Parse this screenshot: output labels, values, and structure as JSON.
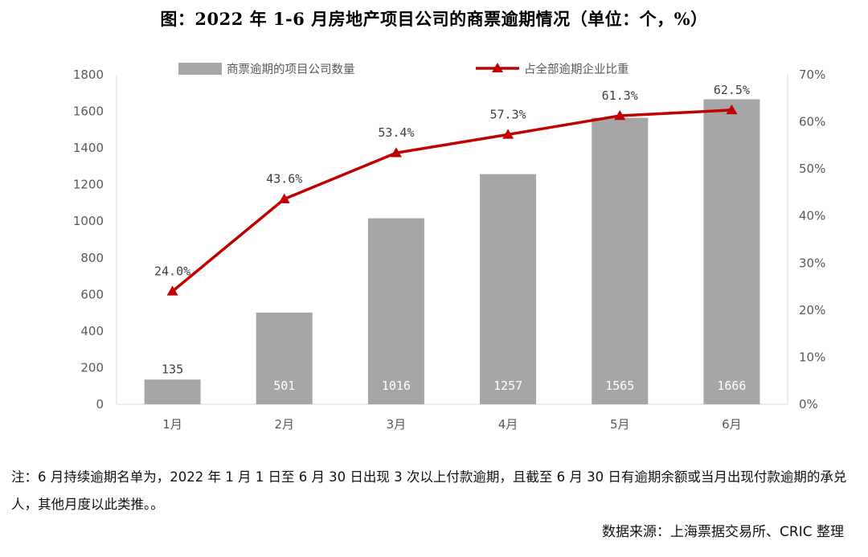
{
  "title": "图：2022 年 1-6 月房地产项目公司的商票逾期情况（单位：个，%）",
  "note": "注：6 月持续逾期名单为，2022 年 1 月 1 日至 6 月 30 日出现 3 次以上付款逾期，且截至 6 月 30 日有逾期余额或当月出现付款逾期的承兑人，其他月度以此类推。。",
  "source": "数据来源：上海票据交易所、CRIC 整理",
  "colors": {
    "bar": "#a6a6a6",
    "line": "#c00000",
    "axis": "#d9d9d9",
    "text": "#595959"
  },
  "chart_data": {
    "type": "bar",
    "categories": [
      "1月",
      "2月",
      "3月",
      "4月",
      "5月",
      "6月"
    ],
    "series": [
      {
        "name": "商票逾期的项目公司数量",
        "type": "bar",
        "axis": "left",
        "values": [
          135,
          501,
          1016,
          1257,
          1565,
          1666
        ],
        "labels": [
          "135",
          "501",
          "1016",
          "1257",
          "1565",
          "1666"
        ]
      },
      {
        "name": "占全部逾期企业比重",
        "type": "line",
        "marker": "triangle",
        "axis": "right",
        "values": [
          24.0,
          43.6,
          53.4,
          57.3,
          61.3,
          62.5
        ],
        "labels": [
          "24.0%",
          "43.6%",
          "53.4%",
          "57.3%",
          "61.3%",
          "62.5%"
        ]
      }
    ],
    "y_left": {
      "ylim": [
        0,
        1800
      ],
      "ticks": [
        "0",
        "200",
        "400",
        "600",
        "800",
        "1000",
        "1200",
        "1400",
        "1600",
        "1800"
      ]
    },
    "y_right": {
      "ylim": [
        0,
        70
      ],
      "ticks": [
        "0%",
        "10%",
        "20%",
        "30%",
        "40%",
        "50%",
        "60%",
        "70%"
      ]
    },
    "legend": "top",
    "grid": false
  }
}
